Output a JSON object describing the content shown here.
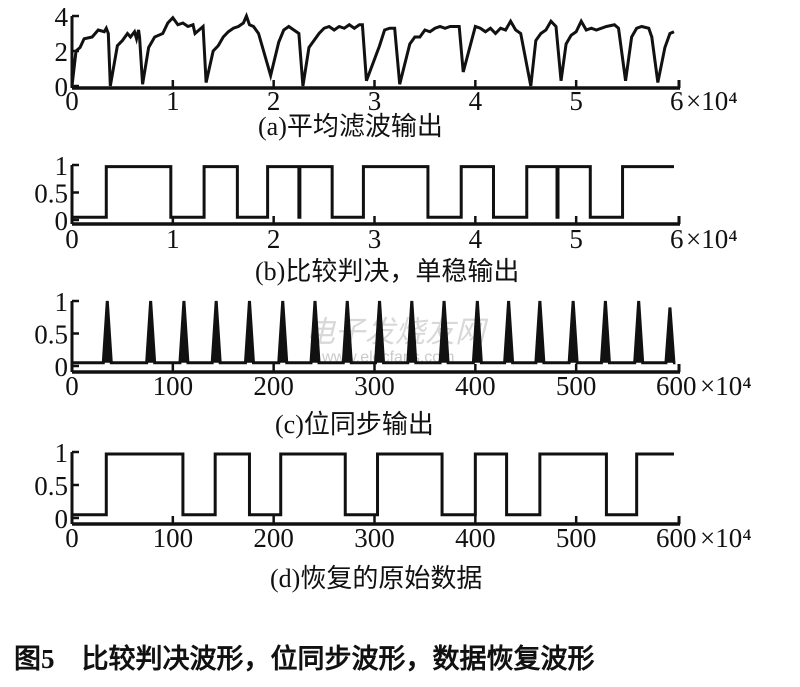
{
  "figure_caption": "图5    比较判决波形，位同步波形，数据恢复波形",
  "watermark": {
    "line1": "电子发烧友网",
    "line2": "www.elecfans.com"
  },
  "chart_data": [
    {
      "type": "line",
      "title": "(a)平均滤波输出",
      "xlim": [
        0,
        6
      ],
      "ylim": [
        0,
        4
      ],
      "xticks": [
        "0",
        "1",
        "2",
        "3",
        "4",
        "5",
        "6"
      ],
      "xtick_values": [
        0,
        1,
        2,
        3,
        4,
        5,
        6
      ],
      "x_multiplier": "×10⁴",
      "yticks": [
        "0",
        "2",
        "4"
      ],
      "ytick_values": [
        0,
        2,
        4
      ],
      "grid": false,
      "x": [
        0,
        0.04,
        0.08,
        0.12,
        0.2,
        0.26,
        0.32,
        0.34,
        0.36,
        0.38,
        0.45,
        0.5,
        0.55,
        0.58,
        0.62,
        0.64,
        0.66,
        0.67,
        0.7,
        0.76,
        0.82,
        0.9,
        0.95,
        1.0,
        1.05,
        1.1,
        1.15,
        1.2,
        1.22,
        1.3,
        1.33,
        1.4,
        1.45,
        1.5,
        1.55,
        1.6,
        1.65,
        1.7,
        1.73,
        1.76,
        1.8,
        1.85,
        1.97,
        2.05,
        2.1,
        2.15,
        2.2,
        2.25,
        2.29,
        2.35,
        2.45,
        2.5,
        2.55,
        2.6,
        2.65,
        2.7,
        2.75,
        2.8,
        2.85,
        2.88,
        2.92,
        3.05,
        3.1,
        3.15,
        3.2,
        3.25,
        3.35,
        3.4,
        3.45,
        3.5,
        3.55,
        3.6,
        3.65,
        3.7,
        3.75,
        3.8,
        3.84,
        3.88,
        4.0,
        4.05,
        4.1,
        4.15,
        4.2,
        4.25,
        4.3,
        4.35,
        4.4,
        4.45,
        4.55,
        4.6,
        4.65,
        4.7,
        4.75,
        4.8,
        4.85,
        4.9,
        4.95,
        5.0,
        5.05,
        5.1,
        5.15,
        5.2,
        5.3,
        5.38,
        5.42,
        5.49,
        5.55,
        5.6,
        5.65,
        5.72,
        5.75,
        5.81,
        5.88,
        5.93,
        5.97
      ],
      "y": [
        0,
        2.0,
        2.2,
        2.7,
        2.8,
        3.2,
        3.1,
        3.3,
        3.0,
        0,
        2.3,
        2.6,
        3.0,
        2.8,
        3.1,
        2.7,
        3.2,
        2.8,
        0.1,
        2.2,
        2.8,
        3.0,
        3.6,
        3.9,
        3.5,
        3.6,
        3.4,
        3.5,
        3.0,
        3.4,
        0.2,
        2.0,
        2.3,
        2.8,
        3.1,
        3.3,
        3.4,
        3.6,
        4.0,
        3.5,
        3.4,
        3.0,
        0.6,
        2.5,
        3.2,
        3.4,
        3.2,
        3.0,
        0,
        2.2,
        3.0,
        3.3,
        3.4,
        3.2,
        3.4,
        3.3,
        3.5,
        3.3,
        3.5,
        3.5,
        0.3,
        2.3,
        3.2,
        3.3,
        3.3,
        0.1,
        2.4,
        2.8,
        2.8,
        3.2,
        3.1,
        3.3,
        3.4,
        3.3,
        3.4,
        3.4,
        3.4,
        0.8,
        3.4,
        3.3,
        3.1,
        3.3,
        3.0,
        3.3,
        3.2,
        3.7,
        3.2,
        3.0,
        0,
        2.6,
        3.0,
        3.2,
        3.7,
        3.4,
        0.3,
        2.4,
        2.9,
        3.1,
        3.7,
        3.2,
        3.3,
        3.2,
        3.4,
        3.5,
        3.3,
        0.3,
        2.8,
        3.3,
        3.4,
        3.3,
        2.8,
        0.2,
        2.2,
        3.0,
        3.1
      ]
    },
    {
      "type": "line",
      "step": "post",
      "title": "(b)比较判决，单稳输出",
      "xlim": [
        0,
        6
      ],
      "ylim": [
        0,
        1
      ],
      "xticks": [
        "0",
        "1",
        "2",
        "3",
        "4",
        "5",
        "6"
      ],
      "xtick_values": [
        0,
        1,
        2,
        3,
        4,
        5,
        6
      ],
      "x_multiplier": "×10⁴",
      "yticks": [
        "0",
        "0.5",
        "1"
      ],
      "ytick_values": [
        0,
        0.5,
        1
      ],
      "grid": false,
      "x": [
        0,
        0.34,
        0.98,
        1.31,
        1.64,
        1.94,
        2.25,
        2.26,
        2.58,
        2.89,
        3.53,
        3.86,
        4.18,
        4.51,
        4.81,
        4.82,
        5.14,
        5.46,
        5.97
      ],
      "y": [
        0.05,
        0.97,
        0.05,
        0.97,
        0.05,
        0.97,
        0.05,
        0.97,
        0.05,
        0.97,
        0.05,
        0.97,
        0.05,
        0.97,
        0.05,
        0.97,
        0.05,
        0.97,
        0.97
      ]
    },
    {
      "type": "line",
      "title": "(c)位同步输出",
      "xlim": [
        0,
        600
      ],
      "ylim": [
        0,
        1
      ],
      "xticks": [
        "0",
        "100",
        "200",
        "300",
        "400",
        "500",
        "600"
      ],
      "xtick_values": [
        0,
        100,
        200,
        300,
        400,
        500,
        600
      ],
      "x_multiplier": "×10⁴",
      "yticks": [
        "0",
        "0.5",
        "1"
      ],
      "ytick_values": [
        0,
        0.5,
        1
      ],
      "grid": false,
      "baseline": 0.05,
      "pulse_x": [
        35,
        78,
        111,
        143,
        176,
        209,
        241,
        273,
        305,
        337,
        369,
        402,
        433,
        464,
        497,
        529,
        562,
        593
      ],
      "pulse_y": [
        1,
        1,
        1,
        1,
        1,
        1,
        1,
        1,
        1,
        1,
        1,
        1,
        1,
        1,
        1,
        1,
        1,
        0.9
      ]
    },
    {
      "type": "line",
      "step": "post",
      "title": "(d)恢复的原始数据",
      "xlim": [
        0,
        600
      ],
      "ylim": [
        0,
        1
      ],
      "xticks": [
        "0",
        "100",
        "200",
        "300",
        "400",
        "500",
        "600"
      ],
      "xtick_values": [
        0,
        100,
        200,
        300,
        400,
        500,
        600
      ],
      "x_multiplier": "×10⁴",
      "yticks": [
        "0",
        "0.5",
        "1"
      ],
      "ytick_values": [
        0,
        0.5,
        1
      ],
      "grid": false,
      "x": [
        0,
        34,
        110,
        142,
        176,
        207,
        271,
        303,
        367,
        400,
        431,
        464,
        530,
        560,
        597
      ],
      "y": [
        0.05,
        0.97,
        0.05,
        0.97,
        0.05,
        0.97,
        0.05,
        0.97,
        0.05,
        0.97,
        0.05,
        0.97,
        0.05,
        0.97,
        0.97
      ]
    }
  ]
}
